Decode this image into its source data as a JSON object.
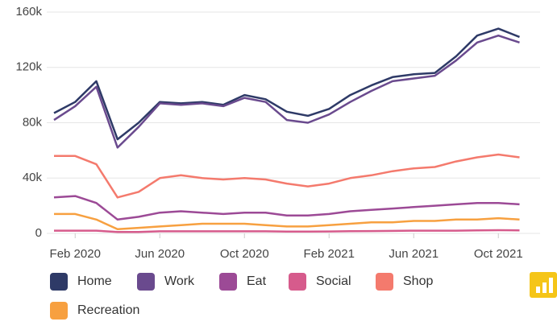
{
  "chart_data": {
    "type": "line",
    "x": [
      "2020-01",
      "2020-02",
      "2020-03",
      "2020-04",
      "2020-05",
      "2020-06",
      "2020-07",
      "2020-08",
      "2020-09",
      "2020-10",
      "2020-11",
      "2020-12",
      "2021-01",
      "2021-02",
      "2021-03",
      "2021-04",
      "2021-05",
      "2021-06",
      "2021-07",
      "2021-08",
      "2021-09",
      "2021-10",
      "2021-11"
    ],
    "xlim": [
      "2020-01",
      "2021-11"
    ],
    "xticks": [
      {
        "value": "2020-02",
        "label": "Feb 2020"
      },
      {
        "value": "2020-06",
        "label": "Jun 2020"
      },
      {
        "value": "2020-10",
        "label": "Oct 2020"
      },
      {
        "value": "2021-02",
        "label": "Feb 2021"
      },
      {
        "value": "2021-06",
        "label": "Jun 2021"
      },
      {
        "value": "2021-10",
        "label": "Oct 2021"
      }
    ],
    "ylim": [
      0,
      160000
    ],
    "yticks": [
      0,
      {
        "value": 40000,
        "label": "40k"
      },
      {
        "value": 80000,
        "label": "80k"
      },
      {
        "value": 120000,
        "label": "120k"
      },
      {
        "value": 160000,
        "label": "160k"
      }
    ],
    "grid": true,
    "series": [
      {
        "name": "Home",
        "color": "#2e3a67",
        "values": [
          87000,
          95000,
          110000,
          68000,
          80000,
          95000,
          94000,
          95000,
          93000,
          100000,
          97000,
          88000,
          85000,
          90000,
          100000,
          107000,
          113000,
          115000,
          116000,
          128000,
          143000,
          148000,
          142000
        ]
      },
      {
        "name": "Work",
        "color": "#6a4a8e",
        "values": [
          82000,
          92000,
          106000,
          62000,
          77000,
          94000,
          93000,
          94000,
          92000,
          98000,
          95000,
          82000,
          80000,
          86000,
          95000,
          103000,
          110000,
          112000,
          114000,
          125000,
          138000,
          143000,
          138000
        ]
      },
      {
        "name": "Eat",
        "color": "#9c4a96",
        "values": [
          26000,
          27000,
          22000,
          10000,
          12000,
          15000,
          16000,
          15000,
          14000,
          15000,
          15000,
          13000,
          13000,
          14000,
          16000,
          17000,
          18000,
          19000,
          20000,
          21000,
          22000,
          22000,
          21000
        ]
      },
      {
        "name": "Social",
        "color": "#d65b8c",
        "values": [
          2000,
          2000,
          2000,
          1000,
          1000,
          1500,
          1500,
          1500,
          1500,
          1500,
          1500,
          1300,
          1300,
          1400,
          1600,
          1700,
          1800,
          2000,
          2000,
          2000,
          2200,
          2300,
          2200
        ]
      },
      {
        "name": "Shop",
        "color": "#f47a6d",
        "values": [
          56000,
          56000,
          50000,
          26000,
          30000,
          40000,
          42000,
          40000,
          39000,
          40000,
          39000,
          36000,
          34000,
          36000,
          40000,
          42000,
          45000,
          47000,
          48000,
          52000,
          55000,
          57000,
          55000
        ]
      },
      {
        "name": "Recreation",
        "color": "#f7a040",
        "values": [
          14000,
          14000,
          10000,
          3000,
          4000,
          5000,
          6000,
          7000,
          7000,
          7000,
          6000,
          5000,
          5000,
          6000,
          7000,
          8000,
          8000,
          9000,
          9000,
          10000,
          10000,
          11000,
          10000
        ]
      }
    ]
  }
}
